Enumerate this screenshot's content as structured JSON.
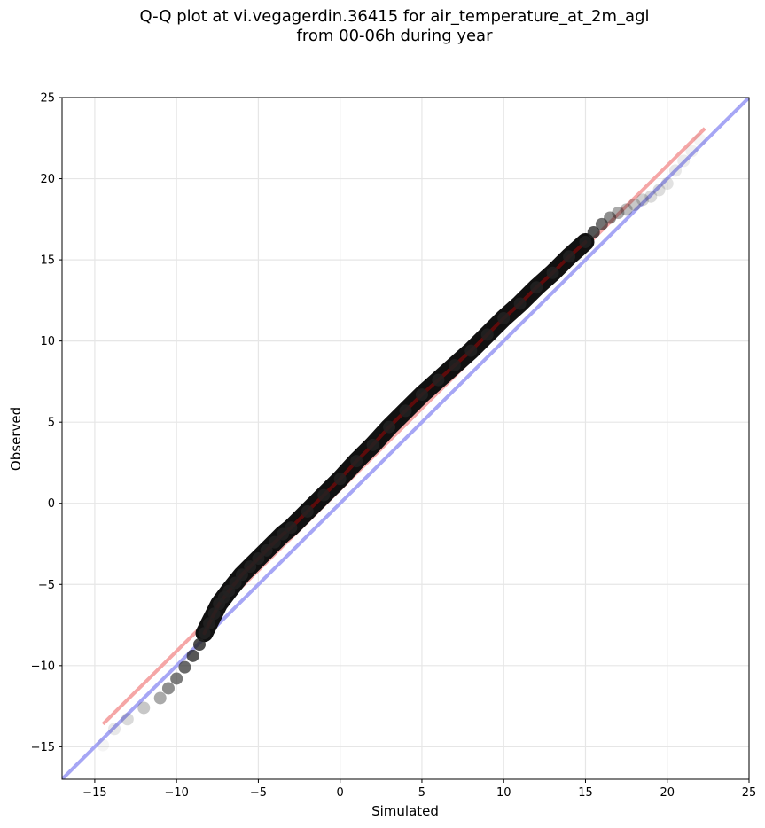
{
  "chart_data": {
    "type": "scatter",
    "title": "Q-Q plot at vi.vegagerdin.36415 for air_temperature_at_2m_agl",
    "subtitle": "from 00-06h during year",
    "xlabel": "Simulated",
    "ylabel": "Observed",
    "xlim": [
      -17,
      25
    ],
    "ylim": [
      -17,
      25
    ],
    "xticks": [
      -15,
      -10,
      -5,
      0,
      5,
      10,
      15,
      20,
      25
    ],
    "yticks": [
      -15,
      -10,
      -5,
      0,
      5,
      10,
      15,
      20,
      25
    ],
    "xtick_labels": [
      "−15",
      "−10",
      "−5",
      "0",
      "5",
      "10",
      "15",
      "20",
      "25"
    ],
    "ytick_labels": [
      "−15",
      "−10",
      "−5",
      "0",
      "5",
      "10",
      "15",
      "20",
      "25"
    ],
    "grid": true,
    "reference_line": {
      "color": "#a6a6f5",
      "x": [
        -17,
        25
      ],
      "y": [
        -17,
        25
      ]
    },
    "fit_line": {
      "color": "#f5a6a6",
      "x": [
        -14.5,
        22.3
      ],
      "y": [
        -13.6,
        23.1
      ]
    },
    "quantiles": {
      "x": [
        -14.5,
        -13.8,
        -13.0,
        -12.0,
        -11.0,
        -10.5,
        -10.0,
        -9.5,
        -9.0,
        -8.6,
        -8.3,
        -8.0,
        -7.7,
        -7.4,
        -7.1,
        -6.8,
        -6.4,
        -6.0,
        -5.5,
        -5.0,
        -4.5,
        -4.0,
        -3.5,
        -3.0,
        -2.0,
        -1.0,
        0.0,
        1.0,
        2.0,
        3.0,
        4.0,
        5.0,
        6.0,
        7.0,
        8.0,
        9.0,
        10.0,
        11.0,
        12.0,
        13.0,
        14.0,
        15.0,
        15.5,
        16.0,
        16.5,
        17.0,
        17.5,
        18.0,
        18.5,
        19.0,
        19.5,
        20.0,
        20.5,
        21.0,
        21.5,
        22.0
      ],
      "y": [
        -14.9,
        -13.9,
        -13.3,
        -12.6,
        -12.0,
        -11.4,
        -10.8,
        -10.1,
        -9.4,
        -8.7,
        -8.0,
        -7.4,
        -6.8,
        -6.2,
        -5.8,
        -5.4,
        -4.9,
        -4.4,
        -3.9,
        -3.4,
        -2.9,
        -2.4,
        -1.9,
        -1.5,
        -0.5,
        0.5,
        1.5,
        2.6,
        3.6,
        4.7,
        5.7,
        6.7,
        7.6,
        8.5,
        9.4,
        10.4,
        11.4,
        12.3,
        13.3,
        14.2,
        15.2,
        16.1,
        16.7,
        17.2,
        17.6,
        17.9,
        18.1,
        18.4,
        18.7,
        18.9,
        19.3,
        19.7,
        20.5,
        21.1,
        21.7,
        22.4
      ],
      "alpha": [
        0.05,
        0.12,
        0.2,
        0.3,
        0.45,
        0.6,
        0.7,
        0.8,
        0.9,
        0.95,
        1,
        1,
        1,
        1,
        1,
        1,
        1,
        1,
        1,
        1,
        1,
        1,
        1,
        1,
        1,
        1,
        1,
        1,
        1,
        1,
        1,
        1,
        1,
        1,
        1,
        1,
        1,
        1,
        1,
        1,
        1,
        1,
        0.9,
        0.75,
        0.6,
        0.45,
        0.35,
        0.3,
        0.25,
        0.2,
        0.18,
        0.15,
        0.12,
        0.1,
        0.08,
        0.05
      ]
    }
  }
}
